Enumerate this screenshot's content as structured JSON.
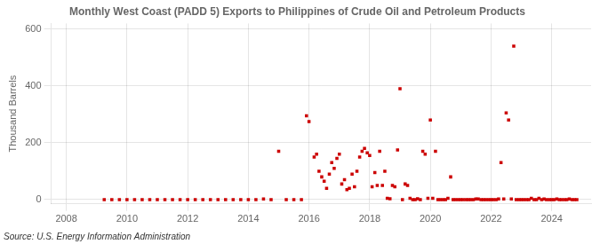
{
  "chart_data": {
    "type": "scatter",
    "title": "Monthly West Coast (PADD 5) Exports to Philippines of Crude Oil and Petroleum Products",
    "ylabel": "Thousand Barrels",
    "source": "Source: U.S. Energy Information Administration",
    "color": "#cc0000",
    "marker": "square",
    "grid": true,
    "xlim": [
      2007.5,
      2025.3
    ],
    "ylim": [
      -15,
      620
    ],
    "xticks": [
      2008,
      2010,
      2012,
      2014,
      2016,
      2018,
      2020,
      2022,
      2024
    ],
    "yticks": [
      0,
      200,
      400,
      600
    ],
    "x": [
      2009.25,
      2009.5,
      2009.75,
      2010.0,
      2010.25,
      2010.5,
      2010.75,
      2011.0,
      2011.25,
      2011.5,
      2011.75,
      2012.0,
      2012.25,
      2012.5,
      2012.75,
      2013.0,
      2013.25,
      2013.5,
      2013.75,
      2014.0,
      2014.25,
      2014.5,
      2014.75,
      2015.0,
      2015.25,
      2015.5,
      2015.75,
      2015.917,
      2016.0,
      2016.17,
      2016.25,
      2016.33,
      2016.42,
      2016.5,
      2016.58,
      2016.67,
      2016.75,
      2016.83,
      2016.92,
      2017.0,
      2017.08,
      2017.17,
      2017.25,
      2017.33,
      2017.42,
      2017.5,
      2017.58,
      2017.67,
      2017.75,
      2017.83,
      2017.92,
      2018.0,
      2018.08,
      2018.17,
      2018.25,
      2018.33,
      2018.42,
      2018.5,
      2018.58,
      2018.67,
      2018.75,
      2018.83,
      2018.92,
      2019.0,
      2019.08,
      2019.17,
      2019.25,
      2019.33,
      2019.42,
      2019.5,
      2019.58,
      2019.67,
      2019.75,
      2019.83,
      2019.92,
      2020.0,
      2020.08,
      2020.17,
      2020.25,
      2020.33,
      2020.42,
      2020.5,
      2020.58,
      2020.67,
      2020.75,
      2020.83,
      2020.92,
      2021.0,
      2021.08,
      2021.17,
      2021.25,
      2021.33,
      2021.42,
      2021.5,
      2021.58,
      2021.67,
      2021.75,
      2021.83,
      2021.92,
      2022.0,
      2022.08,
      2022.17,
      2022.25,
      2022.33,
      2022.42,
      2022.5,
      2022.58,
      2022.67,
      2022.75,
      2022.83,
      2022.92,
      2023.0,
      2023.08,
      2023.17,
      2023.25,
      2023.33,
      2023.42,
      2023.5,
      2023.58,
      2023.67,
      2023.75,
      2023.83,
      2023.92,
      2024.0,
      2024.08,
      2024.17,
      2024.25,
      2024.33,
      2024.42,
      2024.5,
      2024.58,
      2024.67,
      2024.75,
      2024.83
    ],
    "values": [
      0,
      0,
      0,
      0,
      0,
      0,
      0,
      0,
      0,
      0,
      0,
      0,
      0,
      0,
      0,
      0,
      0,
      0,
      0,
      0,
      0,
      2,
      0,
      170,
      0,
      0,
      0,
      295,
      275,
      150,
      160,
      100,
      80,
      65,
      40,
      90,
      130,
      110,
      145,
      160,
      55,
      70,
      35,
      40,
      90,
      45,
      100,
      150,
      170,
      180,
      165,
      155,
      45,
      95,
      50,
      170,
      50,
      100,
      5,
      3,
      50,
      45,
      175,
      390,
      0,
      55,
      50,
      5,
      0,
      0,
      3,
      0,
      170,
      160,
      5,
      280,
      5,
      170,
      0,
      0,
      0,
      0,
      5,
      80,
      0,
      0,
      0,
      0,
      0,
      0,
      0,
      0,
      0,
      2,
      2,
      0,
      0,
      0,
      0,
      0,
      0,
      0,
      2,
      130,
      2,
      305,
      280,
      2,
      540,
      0,
      0,
      0,
      0,
      0,
      0,
      5,
      0,
      0,
      5,
      0,
      2,
      0,
      0,
      0,
      0,
      2,
      0,
      0,
      0,
      0,
      2,
      0,
      0,
      0
    ]
  }
}
